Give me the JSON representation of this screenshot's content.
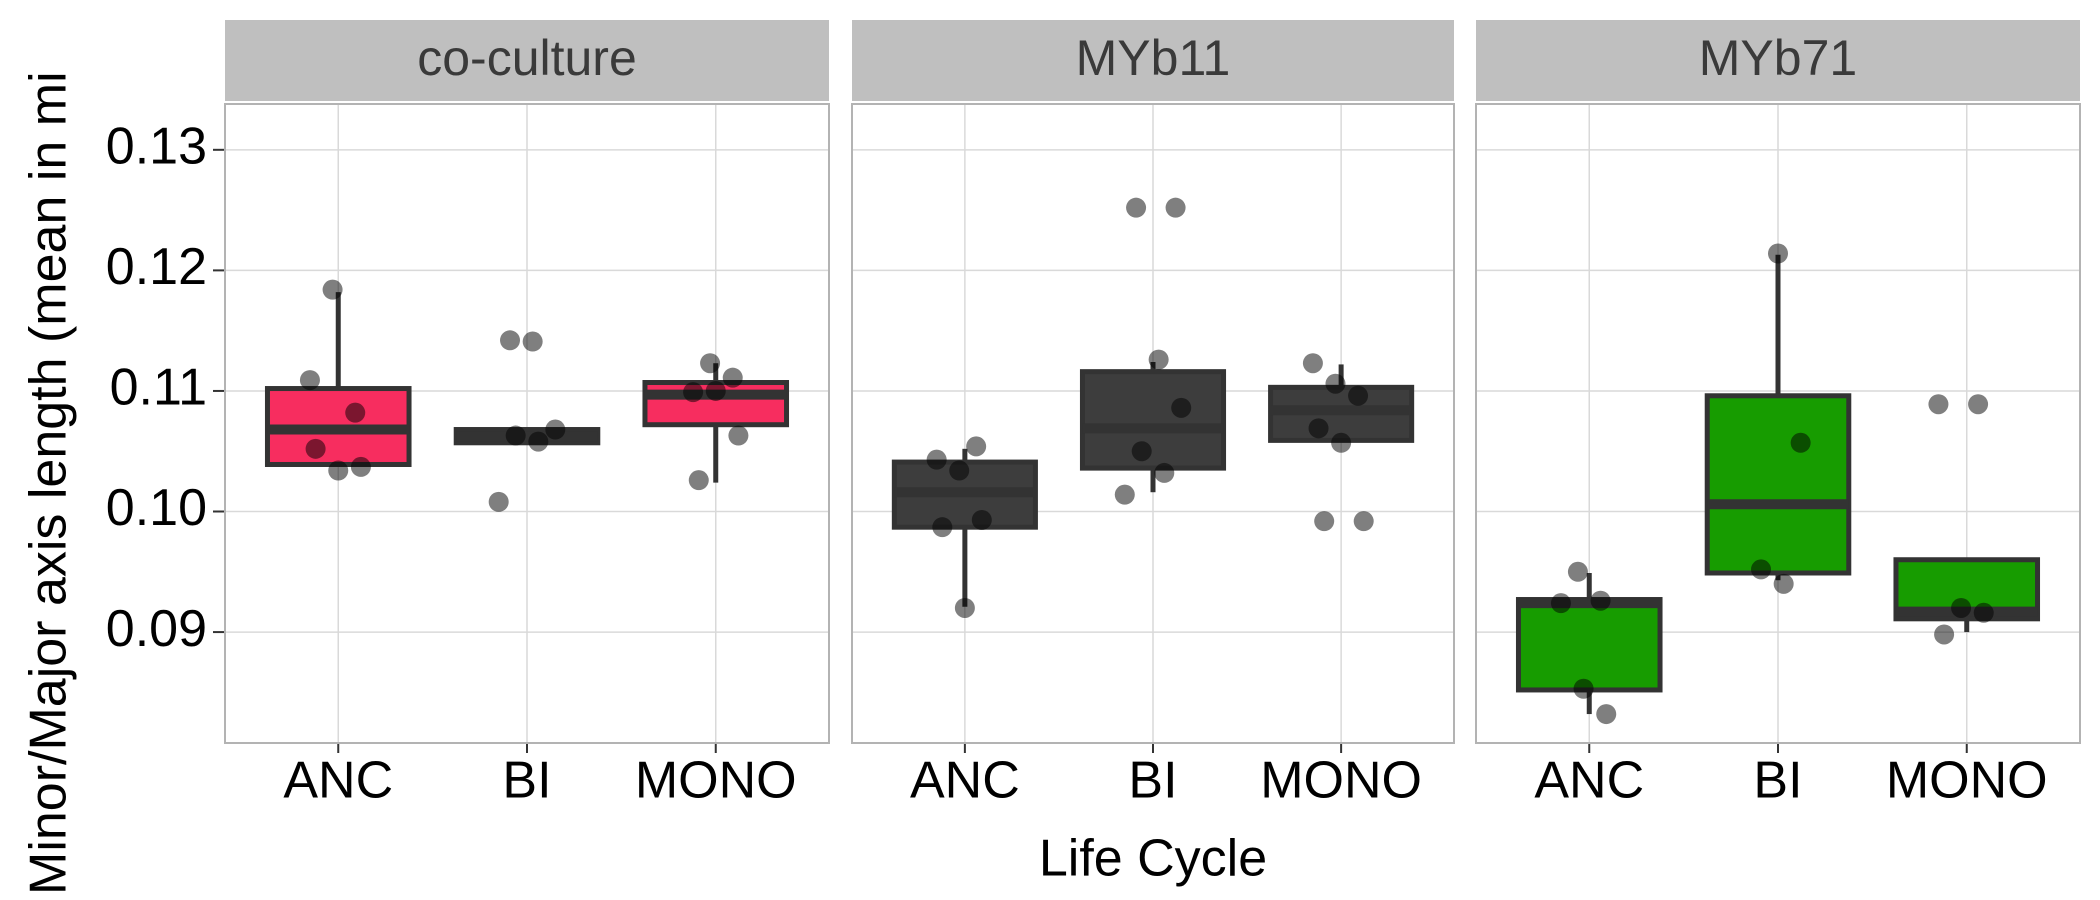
{
  "chart_data": {
    "type": "box",
    "ylabel": "Minor/Major axis length (mean in mi",
    "xlabel": "Life Cycle",
    "categories": [
      "ANC",
      "BI",
      "MONO"
    ],
    "ylim": [
      0.0808,
      0.1338
    ],
    "yticks": [
      0.09,
      {
        "value": 0.1,
        "label": "0.10"
      },
      0.11,
      0.12,
      0.13
    ],
    "grid": true,
    "panels": [
      {
        "title": "co-culture",
        "color": "#f72d5f",
        "boxes": [
          {
            "min": 0.1039,
            "q1": 0.1039,
            "median": 0.1068,
            "q3": 0.1102,
            "max": 0.1182
          },
          {
            "min": 0.1057,
            "q1": 0.1057,
            "median": 0.1062,
            "q3": 0.1068,
            "max": 0.1068
          },
          {
            "min": 0.1024,
            "q1": 0.1072,
            "median": 0.1097,
            "q3": 0.1107,
            "max": 0.1123
          }
        ],
        "points": [
          [
            0.1109,
            0.1184,
            0.1082,
            0.1052,
            0.1034,
            0.1037
          ],
          [
            0.1142,
            0.1141,
            0.1068,
            0.1063,
            0.1058,
            0.1008
          ],
          [
            0.1123,
            0.1111,
            0.1099,
            0.11,
            0.1063,
            0.1026
          ]
        ]
      },
      {
        "title": "MYb11",
        "color": "#3d3d3d",
        "boxes": [
          {
            "min": 0.0921,
            "q1": 0.0987,
            "median": 0.1016,
            "q3": 0.1041,
            "max": 0.1052
          },
          {
            "min": 0.1016,
            "q1": 0.1036,
            "median": 0.1069,
            "q3": 0.1116,
            "max": 0.1124
          },
          {
            "min": 0.1059,
            "q1": 0.1059,
            "median": 0.1084,
            "q3": 0.1103,
            "max": 0.1122
          }
        ],
        "points": [
          [
            0.1054,
            0.1043,
            0.1034,
            0.0993,
            0.0987,
            0.092
          ],
          [
            0.1252,
            0.1252,
            0.1126,
            0.1086,
            0.105,
            0.1032,
            0.1014
          ],
          [
            0.1123,
            0.1106,
            0.1096,
            0.1069,
            0.1057,
            0.0992,
            0.0992
          ]
        ]
      },
      {
        "title": "MYb71",
        "color": "#179c00",
        "boxes": [
          {
            "min": 0.0832,
            "q1": 0.0852,
            "median": 0.0924,
            "q3": 0.0927,
            "max": 0.0949
          },
          {
            "min": 0.0943,
            "q1": 0.0949,
            "median": 0.1006,
            "q3": 0.1096,
            "max": 0.1213
          },
          {
            "min": 0.09,
            "q1": 0.0911,
            "median": 0.0917,
            "q3": 0.096,
            "max": 0.096
          }
        ],
        "points": [
          [
            0.095,
            0.0926,
            0.0924,
            0.0853,
            0.0832
          ],
          [
            0.1214,
            0.1057,
            0.0952,
            0.094
          ],
          [
            0.1089,
            0.1089,
            0.092,
            0.0916,
            0.0898
          ]
        ]
      }
    ]
  }
}
